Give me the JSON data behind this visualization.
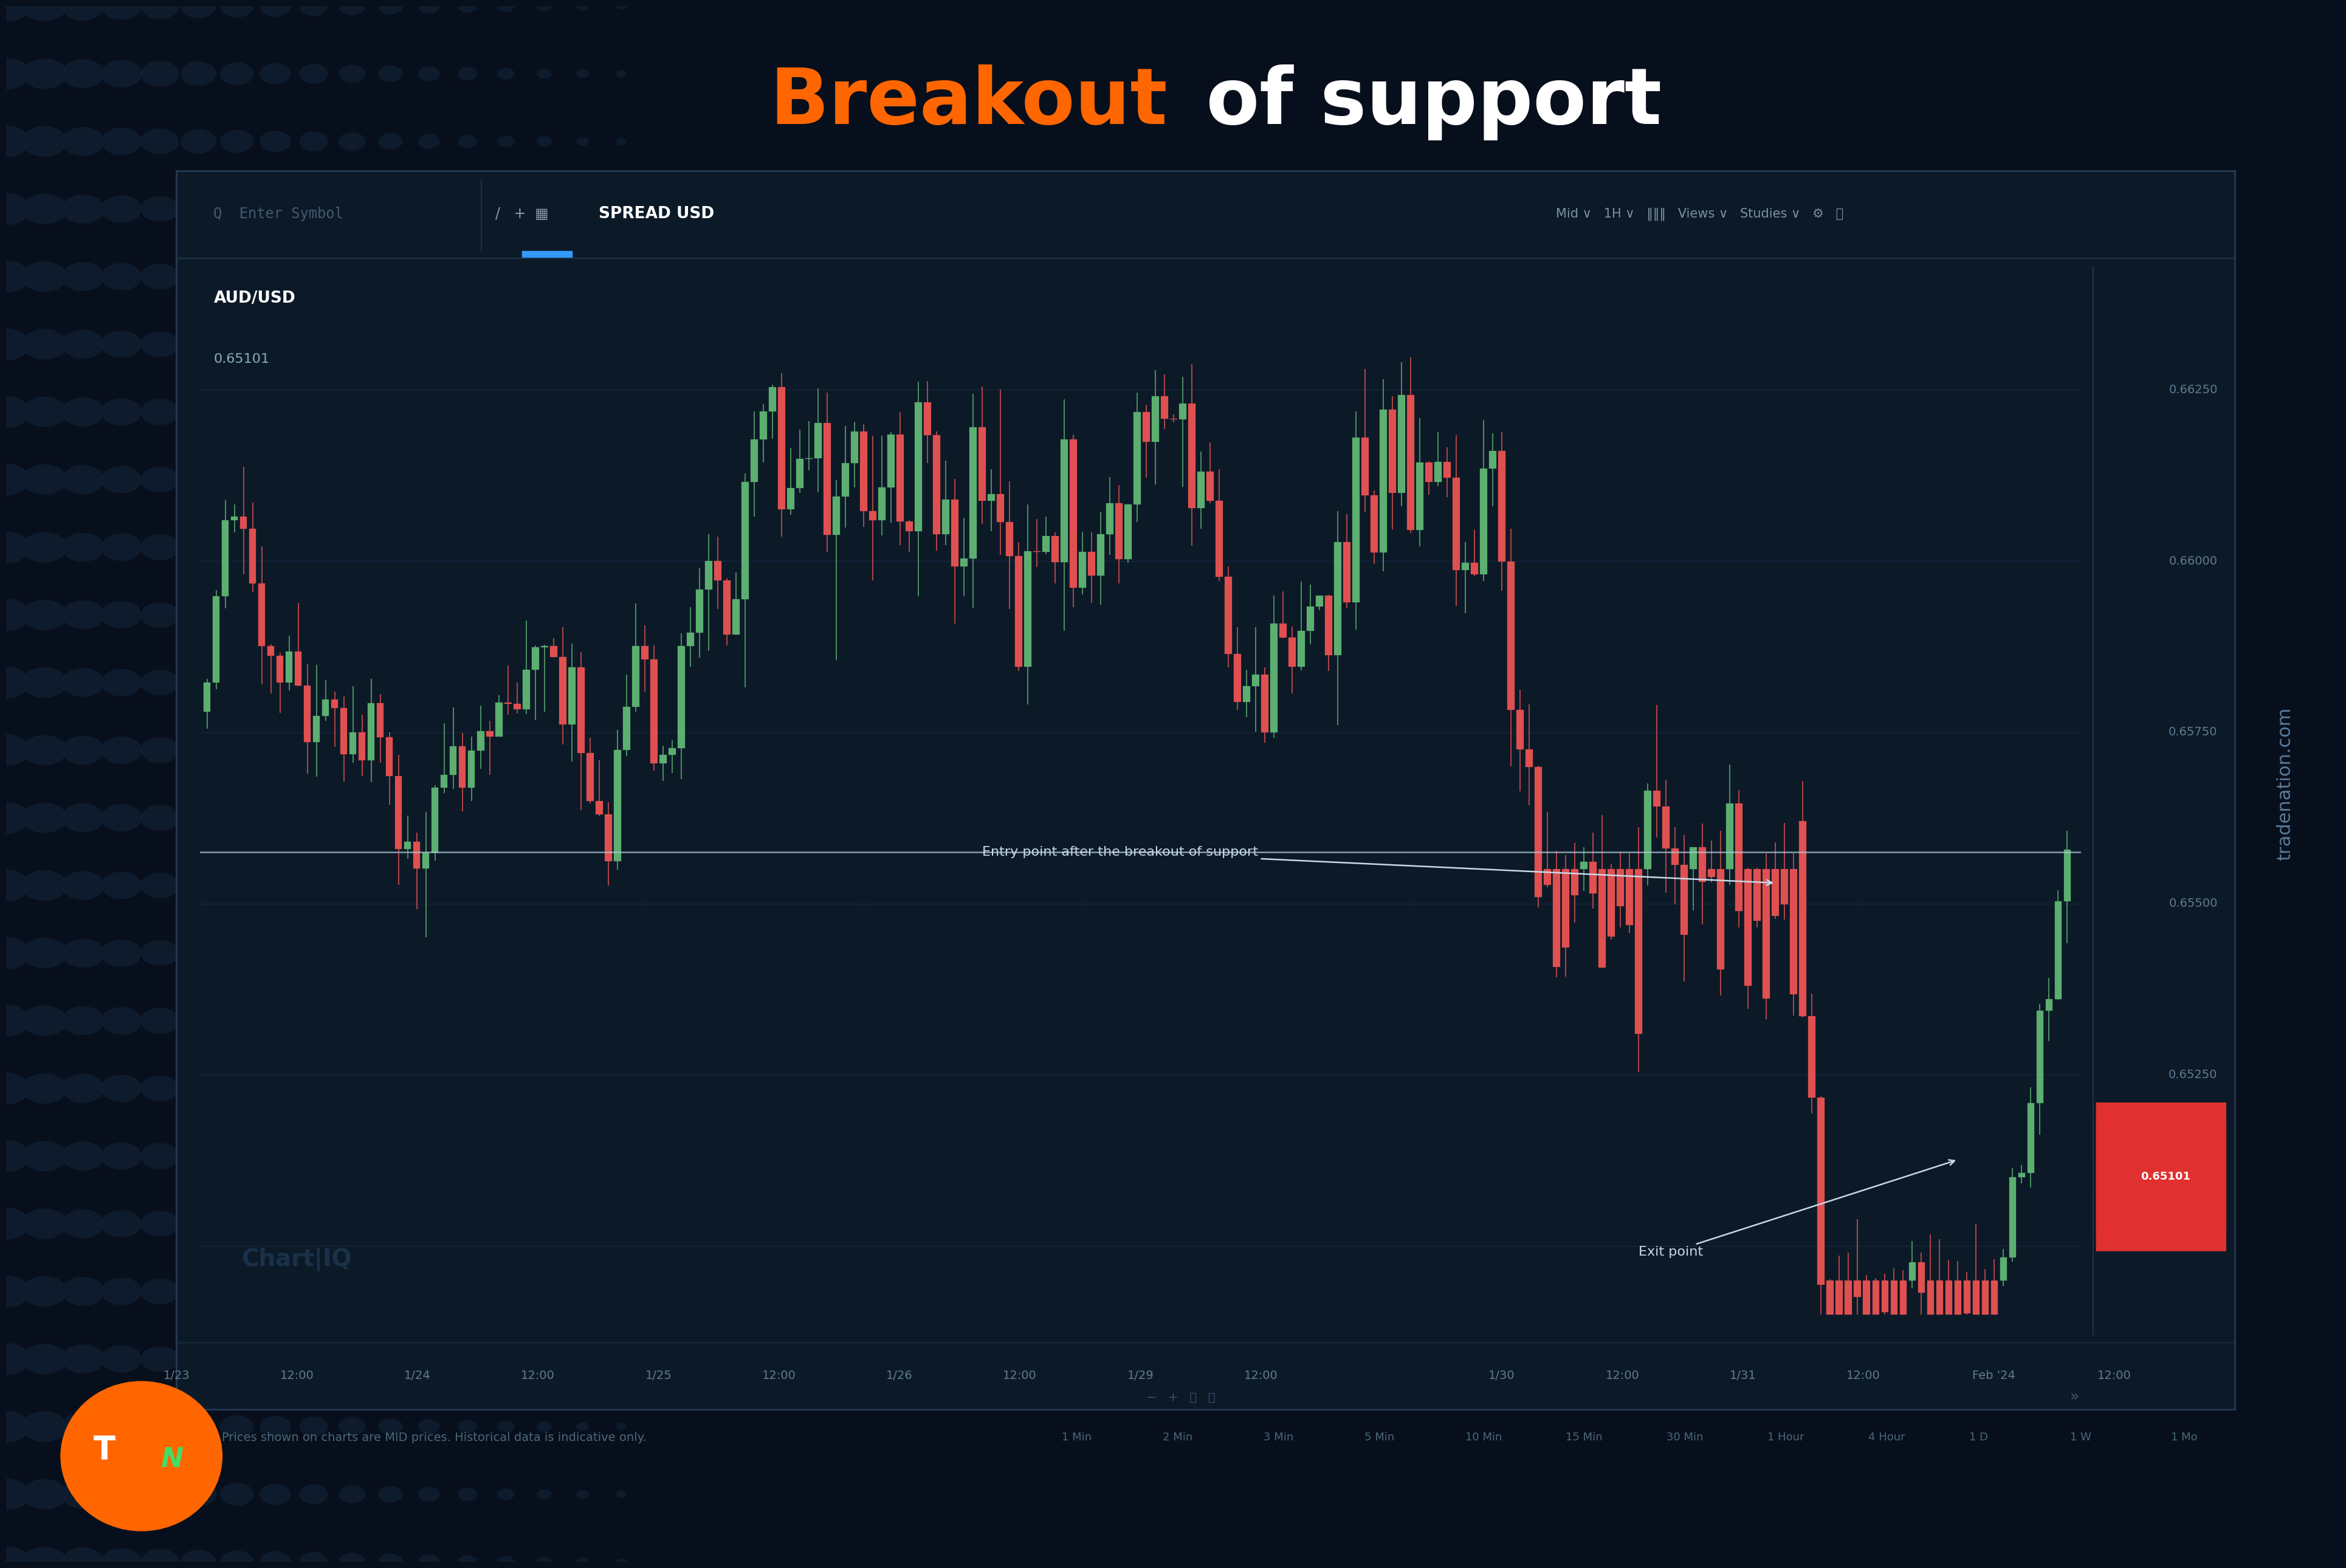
{
  "title_breakout": "Breakout",
  "title_rest": " of support",
  "title_color_breakout": "#FF6600",
  "title_color_rest": "#FFFFFF",
  "title_fontsize": 92,
  "bg_outer": "#080f1c",
  "chart_panel_bg": "#0e1d2e",
  "toolbar_bg": "#0c1a28",
  "grid_color": "#162840",
  "symbol": "AUD/USD",
  "price_label": "0.65101",
  "spread_label": "SPREAD USD",
  "support_level": 0.65575,
  "entry_price": 0.6553,
  "exit_price": 0.65101,
  "entry_text": "Entry point after the breakout of support",
  "exit_text": "Exit point",
  "y_min": 0.6487,
  "y_max": 0.6643,
  "y_ticks": [
    0.65,
    0.6525,
    0.655,
    0.6575,
    0.66,
    0.6625
  ],
  "candle_up_color": "#5caf70",
  "candle_down_color": "#e05050",
  "axis_label_color": "#607a90",
  "sidebar_text": "tradenation.com",
  "bottom_text": "Prices shown on charts are MID prices. Historical data is indicative only.",
  "timeframes": [
    "1 Min",
    "2 Min",
    "3 Min",
    "5 Min",
    "10 Min",
    "15 Min",
    "30 Min",
    "1 Hour",
    "4 Hour",
    "1 D",
    "1 W",
    "1 Mo"
  ],
  "date_labels": [
    "1/23",
    "12:00",
    "1/24",
    "12:00",
    "1/25",
    "12:00",
    "1/26",
    "12:00",
    "1/29",
    "12:00",
    "1/30",
    "12:00",
    "1/31",
    "12:00",
    "Feb '24",
    "12:00"
  ],
  "candle_seed": 42,
  "n_candles": 205,
  "dot_color": "#0e1d30",
  "dot_grid_cols": 12,
  "dot_grid_rows": 22,
  "annotation_color": "#c8d8e8",
  "support_line_color": "#b0c8d8",
  "price_box_color": "#e03030",
  "chartiq_color": "#1e3a55"
}
